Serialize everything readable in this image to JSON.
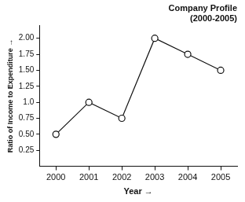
{
  "chart_data": {
    "type": "line",
    "title": [
      "Company Profile",
      "(2000-2005)"
    ],
    "x_label": "Year →",
    "y_label": "Ratio of Income to Expenditure →",
    "categories": [
      "2000",
      "2001",
      "2002",
      "2003",
      "2004",
      "2005"
    ],
    "values": [
      0.5,
      1.0,
      0.75,
      2.0,
      1.75,
      1.5
    ],
    "color": "#111111",
    "marker": "circle",
    "ylim": [
      0,
      2.2
    ],
    "yticks": [
      0.25,
      {
        "value": 0.5,
        "label": "0.50"
      },
      0.75,
      {
        "value": 1.0,
        "label": "1.0"
      },
      1.25,
      {
        "value": 1.5,
        "label": "1.50"
      },
      1.75,
      {
        "value": 2.0,
        "label": "2.00"
      }
    ],
    "grid": false
  }
}
